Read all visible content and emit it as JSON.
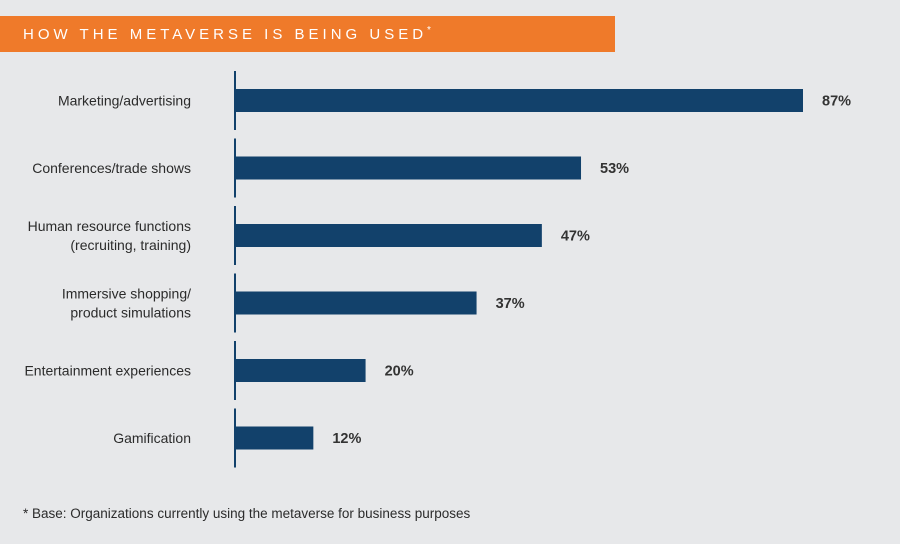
{
  "title": {
    "text": "HOW THE METAVERSE IS BEING USED",
    "mark": "*"
  },
  "footnote": "* Base: Organizations currently using the metaverse for business purposes",
  "colors": {
    "banner": "#ef7a2a",
    "bar": "#12416b",
    "axis": "#12416b",
    "background": "#e7e8ea"
  },
  "chart_data": {
    "type": "bar",
    "orientation": "horizontal",
    "categories": [
      [
        "Marketing/advertising"
      ],
      [
        "Conferences/trade shows"
      ],
      [
        "Human resource functions",
        "(recruiting, training)"
      ],
      [
        "Immersive shopping/",
        "product simulations"
      ],
      [
        "Entertainment experiences"
      ],
      [
        "Gamification"
      ]
    ],
    "values": [
      87,
      53,
      47,
      37,
      20,
      12
    ],
    "value_labels": [
      "87%",
      "53%",
      "47%",
      "37%",
      "20%",
      "12%"
    ],
    "unit": "%",
    "xlim": [
      0,
      100
    ],
    "grid": false,
    "legend": "none"
  }
}
